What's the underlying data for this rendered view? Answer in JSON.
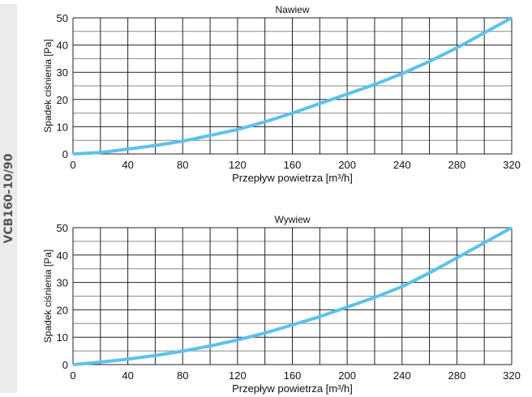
{
  "side_label": "VCB160-10/90",
  "colors": {
    "curve": "#5bc2ec",
    "grid_major": "#222222",
    "grid_minor": "#888888",
    "strip": "#ebebeb"
  },
  "chart_data": [
    {
      "type": "line",
      "title": "Nawiew",
      "xlabel": "Przepływ powietrza [m³/h]",
      "ylabel": "Spadek ciśnienia [Pa]",
      "xlim": [
        0,
        320
      ],
      "ylim": [
        0,
        50
      ],
      "xticks": [
        0,
        40,
        80,
        120,
        160,
        200,
        240,
        280,
        320
      ],
      "yticks": [
        0,
        10,
        20,
        30,
        40,
        50
      ],
      "grid": true,
      "series": [
        {
          "name": "Nawiew",
          "x": [
            0,
            20,
            40,
            60,
            80,
            100,
            120,
            140,
            160,
            180,
            200,
            220,
            240,
            260,
            280,
            300,
            320
          ],
          "y": [
            0,
            0.5,
            1.8,
            3.1,
            4.7,
            6.8,
            9,
            11.8,
            15,
            18.5,
            22,
            25.5,
            29.5,
            34,
            39,
            44.5,
            50
          ]
        }
      ]
    },
    {
      "type": "line",
      "title": "Wywiew",
      "xlabel": "Przepływ powietrza [m³/h]",
      "ylabel": "Spadek ciśnienia [Pa]",
      "xlim": [
        0,
        320
      ],
      "ylim": [
        0,
        50
      ],
      "xticks": [
        0,
        40,
        80,
        120,
        160,
        200,
        240,
        280,
        320
      ],
      "yticks": [
        0,
        10,
        20,
        30,
        40,
        50
      ],
      "grid": true,
      "series": [
        {
          "name": "Wywiew",
          "x": [
            0,
            20,
            40,
            60,
            80,
            100,
            120,
            140,
            160,
            180,
            200,
            220,
            240,
            260,
            280,
            300,
            320
          ],
          "y": [
            0,
            0.9,
            2,
            3.3,
            4.9,
            6.8,
            9,
            11.5,
            14.5,
            17.5,
            21,
            24.5,
            28.5,
            33.5,
            39,
            44.5,
            50
          ]
        }
      ]
    }
  ]
}
